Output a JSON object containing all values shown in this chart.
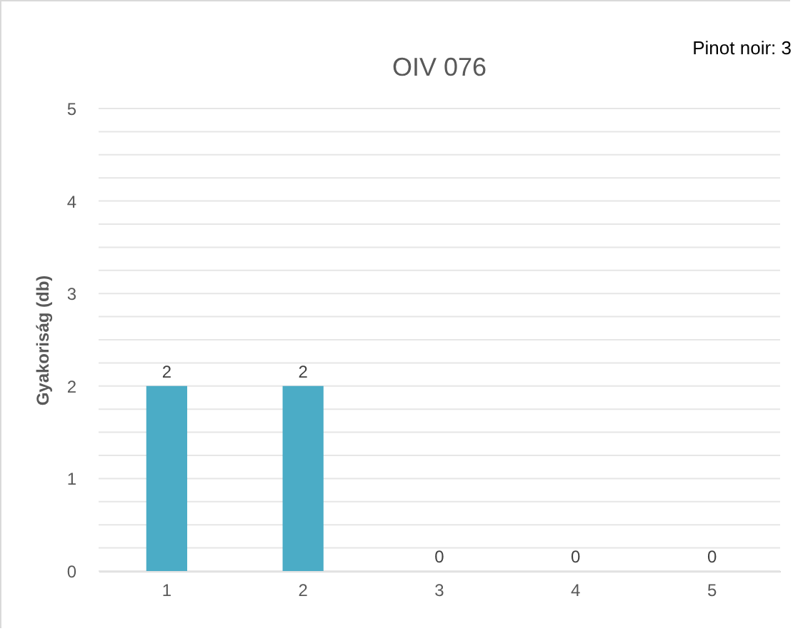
{
  "chart_data": {
    "type": "bar",
    "title": "OIV 076",
    "ylabel": "Gyakoriság (db)",
    "annotations": [
      "Pinot noir: 3"
    ],
    "categories": [
      "1",
      "2",
      "3",
      "4",
      "5"
    ],
    "values": [
      2,
      2,
      0,
      0,
      0
    ],
    "color": "#4bacc6",
    "data_labels": true,
    "grid": "y",
    "ylim": [
      0,
      5
    ],
    "yticks": [
      0,
      {
        "value": 0.25,
        "label": null
      },
      {
        "value": 0.5,
        "label": null
      },
      {
        "value": 0.75,
        "label": null
      },
      1,
      {
        "value": 1.25,
        "label": null
      },
      {
        "value": 1.5,
        "label": null
      },
      {
        "value": 1.75,
        "label": null
      },
      2,
      {
        "value": 2.25,
        "label": null
      },
      {
        "value": 2.5,
        "label": null
      },
      {
        "value": 2.75,
        "label": null
      },
      3,
      {
        "value": 3.25,
        "label": null
      },
      {
        "value": 3.5,
        "label": null
      },
      {
        "value": 3.75,
        "label": null
      },
      4,
      {
        "value": 4.25,
        "label": null
      },
      {
        "value": 4.5,
        "label": null
      },
      {
        "value": 4.75,
        "label": null
      },
      5
    ]
  }
}
